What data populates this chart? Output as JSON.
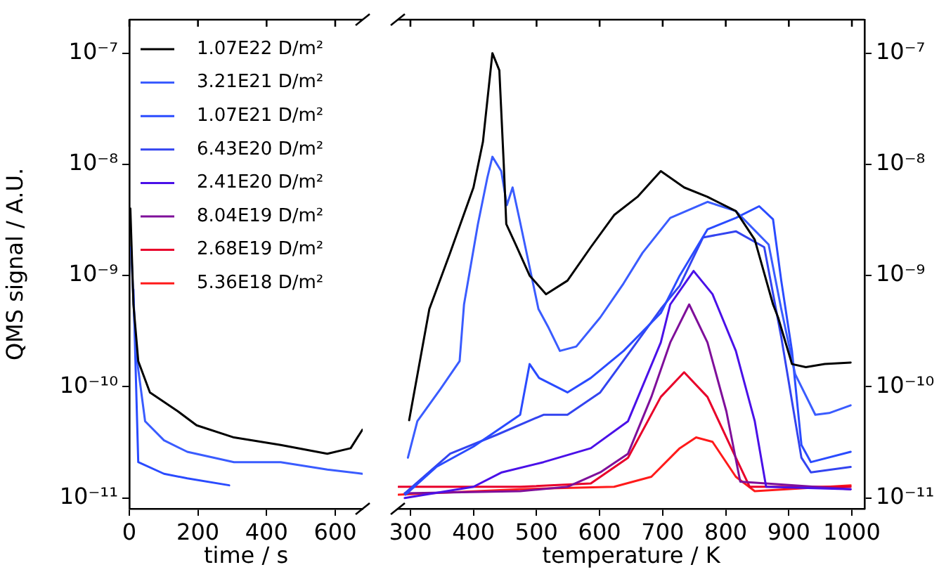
{
  "chart_data": [
    {
      "type": "line",
      "xlabel": "time / s",
      "ylabel": "QMS signal / A.U.",
      "log": "y",
      "grid": false,
      "legend": "top",
      "marker": "none",
      "line_style": "solid",
      "xlim": [
        0,
        680
      ],
      "xticks": [
        0,
        200,
        400,
        600
      ],
      "ylim": [
        8e-12,
        2e-07
      ],
      "yticks": [
        {
          "value": 1e-11,
          "label": "10⁻¹¹"
        },
        {
          "value": 1e-10,
          "label": "10⁻¹⁰"
        },
        {
          "value": 1e-09,
          "label": "10⁻⁹"
        },
        {
          "value": 1e-08,
          "label": "10⁻⁸"
        },
        {
          "value": 1e-07,
          "label": "10⁻⁷"
        }
      ],
      "series": [
        {
          "name": "1.07E22 D/m²",
          "color": "#000000",
          "x": [
            3,
            12,
            26,
            60,
            142,
            196,
            305,
            441,
            577,
            645,
            679
          ],
          "values": [
            4e-09,
            5.5e-10,
            1.7e-10,
            8.9e-11,
            6e-11,
            4.5e-11,
            3.5e-11,
            3e-11,
            2.5e-11,
            2.8e-11,
            4.1e-11
          ]
        },
        {
          "name": "3.21E21 D/m²",
          "color": "#3a5cff",
          "x": [
            5,
            19,
            46,
            101,
            169,
            305,
            441,
            577,
            679
          ],
          "values": [
            1.8e-09,
            2.1e-10,
            4.9e-11,
            3.3e-11,
            2.6e-11,
            2.1e-11,
            2.1e-11,
            1.8e-11,
            1.65e-11
          ]
        },
        {
          "name": "1.07E21 D/m²",
          "color": "#2a4bff",
          "x": [
            12,
            26,
            101,
            169,
            291
          ],
          "values": [
            7.5e-10,
            2.1e-11,
            1.65e-11,
            1.5e-11,
            1.3e-11
          ]
        },
        {
          "name": "6.43E20 D/m²",
          "color": "#3344f0"
        },
        {
          "name": "2.41E20 D/m²",
          "color": "#4a10e8"
        },
        {
          "name": "8.04E19 D/m²",
          "color": "#7f0f9a"
        },
        {
          "name": "2.68E19 D/m²",
          "color": "#e8002a"
        },
        {
          "name": "5.36E18 D/m²",
          "color": "#ff1a1a"
        }
      ]
    },
    {
      "type": "line",
      "xlabel": "temperature / K",
      "log": "y",
      "grid": false,
      "legend": false,
      "marker": "none",
      "line_style": "solid",
      "xlim": [
        280,
        1020
      ],
      "xticks": [
        300,
        400,
        500,
        600,
        700,
        800,
        900,
        1000
      ],
      "ylim": [
        8e-12,
        2e-07
      ],
      "yticks": [
        {
          "value": 1e-11,
          "label": "10⁻¹¹"
        },
        {
          "value": 1e-10,
          "label": "10⁻¹⁰"
        },
        {
          "value": 1e-09,
          "label": "10⁻⁹"
        },
        {
          "value": 1e-08,
          "label": "10⁻⁸"
        },
        {
          "value": 1e-07,
          "label": "10⁻⁷"
        }
      ],
      "series": [
        {
          "color": "#000000",
          "x": [
            298,
            330,
            363,
            400,
            415,
            430,
            441,
            448,
            452,
            467,
            489,
            515,
            549,
            586,
            623,
            660,
            697,
            734,
            771,
            816,
            846,
            875,
            883,
            905,
            927,
            957,
            998
          ],
          "values": [
            5e-11,
            5e-10,
            1.6e-09,
            6.2e-09,
            1.6e-08,
            1e-07,
            7e-08,
            1e-08,
            2.9e-09,
            1.9e-09,
            1e-09,
            6.8e-10,
            9e-10,
            1.8e-09,
            3.5e-09,
            5.1e-09,
            8.7e-09,
            6.2e-09,
            5.1e-09,
            3.8e-09,
            2.1e-09,
            5.5e-10,
            4.2e-10,
            1.6e-10,
            1.5e-10,
            1.6e-10,
            1.65e-10
          ]
        },
        {
          "color": "#3a5cff",
          "x": [
            296,
            311,
            348,
            378,
            385,
            407,
            422,
            430,
            444,
            453,
            462,
            473,
            503,
            519,
            537,
            563,
            601,
            638,
            668,
            712,
            771,
            816,
            868,
            888,
            910,
            942,
            964,
            998
          ],
          "values": [
            2.3e-11,
            4.9e-11,
            9.6e-11,
            1.7e-10,
            5.5e-10,
            2.9e-09,
            7.6e-09,
            1.17e-08,
            8.7e-09,
            4.3e-09,
            6.2e-09,
            3.2e-09,
            5e-10,
            3.4e-10,
            2.1e-10,
            2.3e-10,
            4.2e-10,
            8.5e-10,
            1.6e-09,
            3.3e-09,
            4.6e-09,
            3.8e-09,
            1.9e-09,
            5e-10,
            1.3e-10,
            5.6e-11,
            5.8e-11,
            6.8e-11
          ]
        },
        {
          "color": "#2a4bff",
          "x": [
            292,
            341,
            400,
            474,
            489,
            504,
            549,
            586,
            638,
            697,
            727,
            771,
            816,
            853,
            875,
            888,
            905,
            920,
            935,
            998
          ],
          "values": [
            1.07e-11,
            1.9e-11,
            2.9e-11,
            5.6e-11,
            1.6e-10,
            1.2e-10,
            8.9e-11,
            1.2e-10,
            2.1e-10,
            4.6e-10,
            1e-09,
            2.6e-09,
            3.3e-09,
            4.2e-09,
            3.2e-09,
            9e-10,
            2.1e-10,
            3e-11,
            2.1e-11,
            2.6e-11
          ]
        },
        {
          "color": "#3344f0",
          "x": [
            291,
            363,
            437,
            511,
            549,
            601,
            649,
            697,
            727,
            764,
            816,
            861,
            888,
            920,
            935,
            998
          ],
          "values": [
            1.1e-11,
            2.5e-11,
            3.7e-11,
            5.6e-11,
            5.6e-11,
            8.9e-11,
            2.1e-10,
            5e-10,
            8.1e-10,
            2.2e-09,
            2.5e-09,
            1.8e-09,
            2.8e-10,
            2.3e-11,
            1.7e-11,
            1.9e-11
          ]
        },
        {
          "color": "#4a10e8",
          "x": [
            291,
            400,
            445,
            511,
            586,
            645,
            697,
            712,
            749,
            779,
            816,
            846,
            864,
            998
          ],
          "values": [
            1e-11,
            1.26e-11,
            1.7e-11,
            2.1e-11,
            2.8e-11,
            4.9e-11,
            2.5e-10,
            5.5e-10,
            1.1e-09,
            6.8e-10,
            2.1e-10,
            4.9e-11,
            1.26e-11,
            1.2e-11
          ]
        },
        {
          "color": "#7f0f9a",
          "x": [
            291,
            474,
            549,
            601,
            645,
            682,
            712,
            742,
            771,
            801,
            823,
            998
          ],
          "values": [
            1.1e-11,
            1.15e-11,
            1.26e-11,
            1.7e-11,
            2.5e-11,
            8.1e-11,
            2.5e-10,
            5.5e-10,
            2.5e-10,
            6e-11,
            1.4e-11,
            1.2e-11
          ]
        },
        {
          "color": "#e8002a",
          "x": [
            281,
            474,
            586,
            645,
            697,
            734,
            771,
            816,
            838,
            998
          ],
          "values": [
            1.26e-11,
            1.26e-11,
            1.35e-11,
            2.3e-11,
            8.1e-11,
            1.35e-10,
            8.1e-11,
            2.3e-11,
            1.26e-11,
            1.26e-11
          ]
        },
        {
          "color": "#ff1a1a",
          "x": [
            281,
            474,
            623,
            682,
            727,
            753,
            779,
            816,
            846,
            998
          ],
          "values": [
            1.07e-11,
            1.2e-11,
            1.26e-11,
            1.55e-11,
            2.8e-11,
            3.5e-11,
            3.2e-11,
            1.55e-11,
            1.15e-11,
            1.3e-11
          ]
        }
      ]
    }
  ]
}
